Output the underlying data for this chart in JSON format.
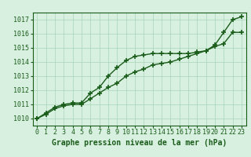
{
  "xlabel": "Graphe pression niveau de la mer (hPa)",
  "ylim": [
    1009.5,
    1017.5
  ],
  "xlim": [
    -0.5,
    23.5
  ],
  "yticks": [
    1010,
    1011,
    1012,
    1013,
    1014,
    1015,
    1016,
    1017
  ],
  "xticks": [
    0,
    1,
    2,
    3,
    4,
    5,
    6,
    7,
    8,
    9,
    10,
    11,
    12,
    13,
    14,
    15,
    16,
    17,
    18,
    19,
    20,
    21,
    22,
    23
  ],
  "background_color": "#d8f0e0",
  "plot_bg_color": "#d8f0e0",
  "grid_color": "#a8d4b8",
  "line_color": "#1a5c1a",
  "line1_x": [
    0,
    1,
    2,
    3,
    4,
    5,
    6,
    7,
    8,
    9,
    10,
    11,
    12,
    13,
    14,
    15,
    16,
    17,
    18,
    19,
    20,
    21,
    22,
    23
  ],
  "line1_y": [
    1010.0,
    1010.4,
    1010.8,
    1011.0,
    1011.1,
    1011.1,
    1011.8,
    1012.2,
    1013.0,
    1013.6,
    1014.1,
    1014.4,
    1014.5,
    1014.6,
    1014.6,
    1014.6,
    1014.6,
    1014.6,
    1014.7,
    1014.8,
    1015.2,
    1016.1,
    1017.0,
    1017.2
  ],
  "line2_x": [
    0,
    1,
    2,
    3,
    4,
    5,
    6,
    7,
    8,
    9,
    10,
    11,
    12,
    13,
    14,
    15,
    16,
    17,
    18,
    19,
    20,
    21,
    22,
    23
  ],
  "line2_y": [
    1010.0,
    1010.3,
    1010.7,
    1010.9,
    1011.0,
    1011.0,
    1011.4,
    1011.8,
    1012.2,
    1012.5,
    1013.0,
    1013.3,
    1013.5,
    1013.8,
    1013.9,
    1014.0,
    1014.2,
    1014.4,
    1014.6,
    1014.8,
    1015.1,
    1015.3,
    1016.1,
    1016.1
  ],
  "marker": "+",
  "markersize": 5,
  "linewidth": 1.0,
  "tick_fontsize": 6,
  "xlabel_fontsize": 7
}
